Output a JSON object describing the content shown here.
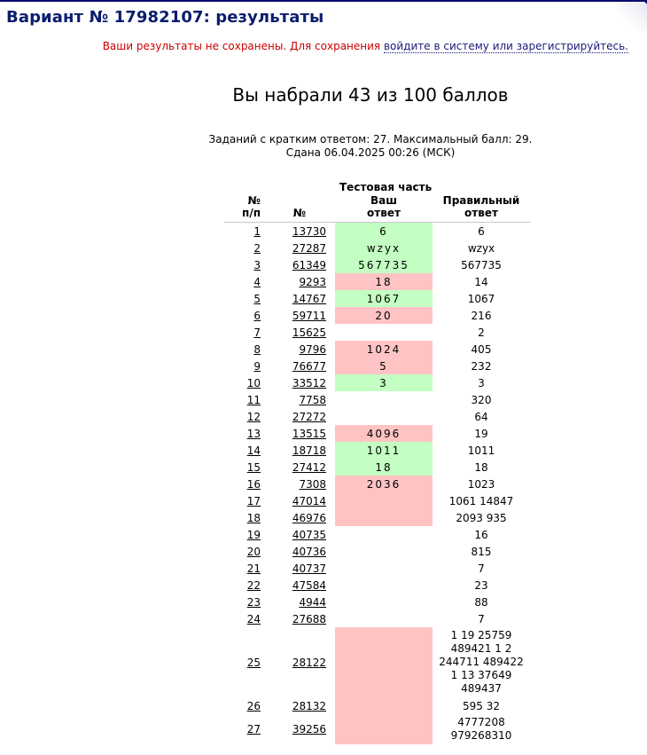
{
  "header": {
    "title": "Вариант № 17982107: результаты"
  },
  "notice": {
    "warning": "Ваши результаты не сохранены. Для сохранения ",
    "login_link": "войдите в систему или зарегистрируйтесь."
  },
  "score": {
    "text": "Вы набрали 43 из 100 баллов"
  },
  "info": {
    "line1": "Заданий с кратким ответом: 27. Максимальный балл: 29.",
    "line2": "Сдана 06.04.2025 00:26 (МСК)"
  },
  "table": {
    "section_header": "Тестовая часть",
    "col_num": "№ п/п",
    "col_id": "№",
    "col_your": "Ваш ответ",
    "col_correct": "Правильный ответ",
    "rows": [
      {
        "n": "1",
        "id": "13730",
        "ans": "6",
        "cor": "6",
        "status": "ok"
      },
      {
        "n": "2",
        "id": "27287",
        "ans": "wzyx",
        "cor": "wzyx",
        "status": "ok"
      },
      {
        "n": "3",
        "id": "61349",
        "ans": "567735",
        "cor": "567735",
        "status": "ok"
      },
      {
        "n": "4",
        "id": "9293",
        "ans": "18",
        "cor": "14",
        "status": "bad"
      },
      {
        "n": "5",
        "id": "14767",
        "ans": "1067",
        "cor": "1067",
        "status": "ok"
      },
      {
        "n": "6",
        "id": "59711",
        "ans": "20",
        "cor": "216",
        "status": "bad"
      },
      {
        "n": "7",
        "id": "15625",
        "ans": "",
        "cor": "2",
        "status": "none"
      },
      {
        "n": "8",
        "id": "9796",
        "ans": "1024",
        "cor": "405",
        "status": "bad"
      },
      {
        "n": "9",
        "id": "76677",
        "ans": "5",
        "cor": "232",
        "status": "bad"
      },
      {
        "n": "10",
        "id": "33512",
        "ans": "3",
        "cor": "3",
        "status": "ok"
      },
      {
        "n": "11",
        "id": "7758",
        "ans": "",
        "cor": "320",
        "status": "none"
      },
      {
        "n": "12",
        "id": "27272",
        "ans": "",
        "cor": "64",
        "status": "none"
      },
      {
        "n": "13",
        "id": "13515",
        "ans": "4096",
        "cor": "19",
        "status": "bad"
      },
      {
        "n": "14",
        "id": "18718",
        "ans": "1011",
        "cor": "1011",
        "status": "ok"
      },
      {
        "n": "15",
        "id": "27412",
        "ans": "18",
        "cor": "18",
        "status": "ok"
      },
      {
        "n": "16",
        "id": "7308",
        "ans": "2036",
        "cor": "1023",
        "status": "bad"
      },
      {
        "n": "17",
        "id": "47014",
        "ans": "",
        "cor": "1061 14847",
        "status": "bad"
      },
      {
        "n": "18",
        "id": "46976",
        "ans": "",
        "cor": "2093 935",
        "status": "bad"
      },
      {
        "n": "19",
        "id": "40735",
        "ans": "",
        "cor": "16",
        "status": "none"
      },
      {
        "n": "20",
        "id": "40736",
        "ans": "",
        "cor": "815",
        "status": "none"
      },
      {
        "n": "21",
        "id": "40737",
        "ans": "",
        "cor": "7",
        "status": "none"
      },
      {
        "n": "22",
        "id": "47584",
        "ans": "",
        "cor": "23",
        "status": "none"
      },
      {
        "n": "23",
        "id": "4944",
        "ans": "",
        "cor": "88",
        "status": "none"
      },
      {
        "n": "24",
        "id": "27688",
        "ans": "",
        "cor": "7",
        "status": "none"
      },
      {
        "n": "25",
        "id": "28122",
        "ans": "",
        "cor": "1 19 25759 489421 1 2 244711 489422 1 13 37649 489437",
        "status": "bad"
      },
      {
        "n": "26",
        "id": "28132",
        "ans": "",
        "cor": "595 32",
        "status": "bad"
      },
      {
        "n": "27",
        "id": "39256",
        "ans": "",
        "cor": "4777208 979268310",
        "status": "bad"
      }
    ]
  },
  "colors": {
    "correct_bg": "#c3ffc3",
    "wrong_bg": "#ffc3c3",
    "title_color": "#0a1d6e",
    "warning_color": "#cc0000"
  }
}
